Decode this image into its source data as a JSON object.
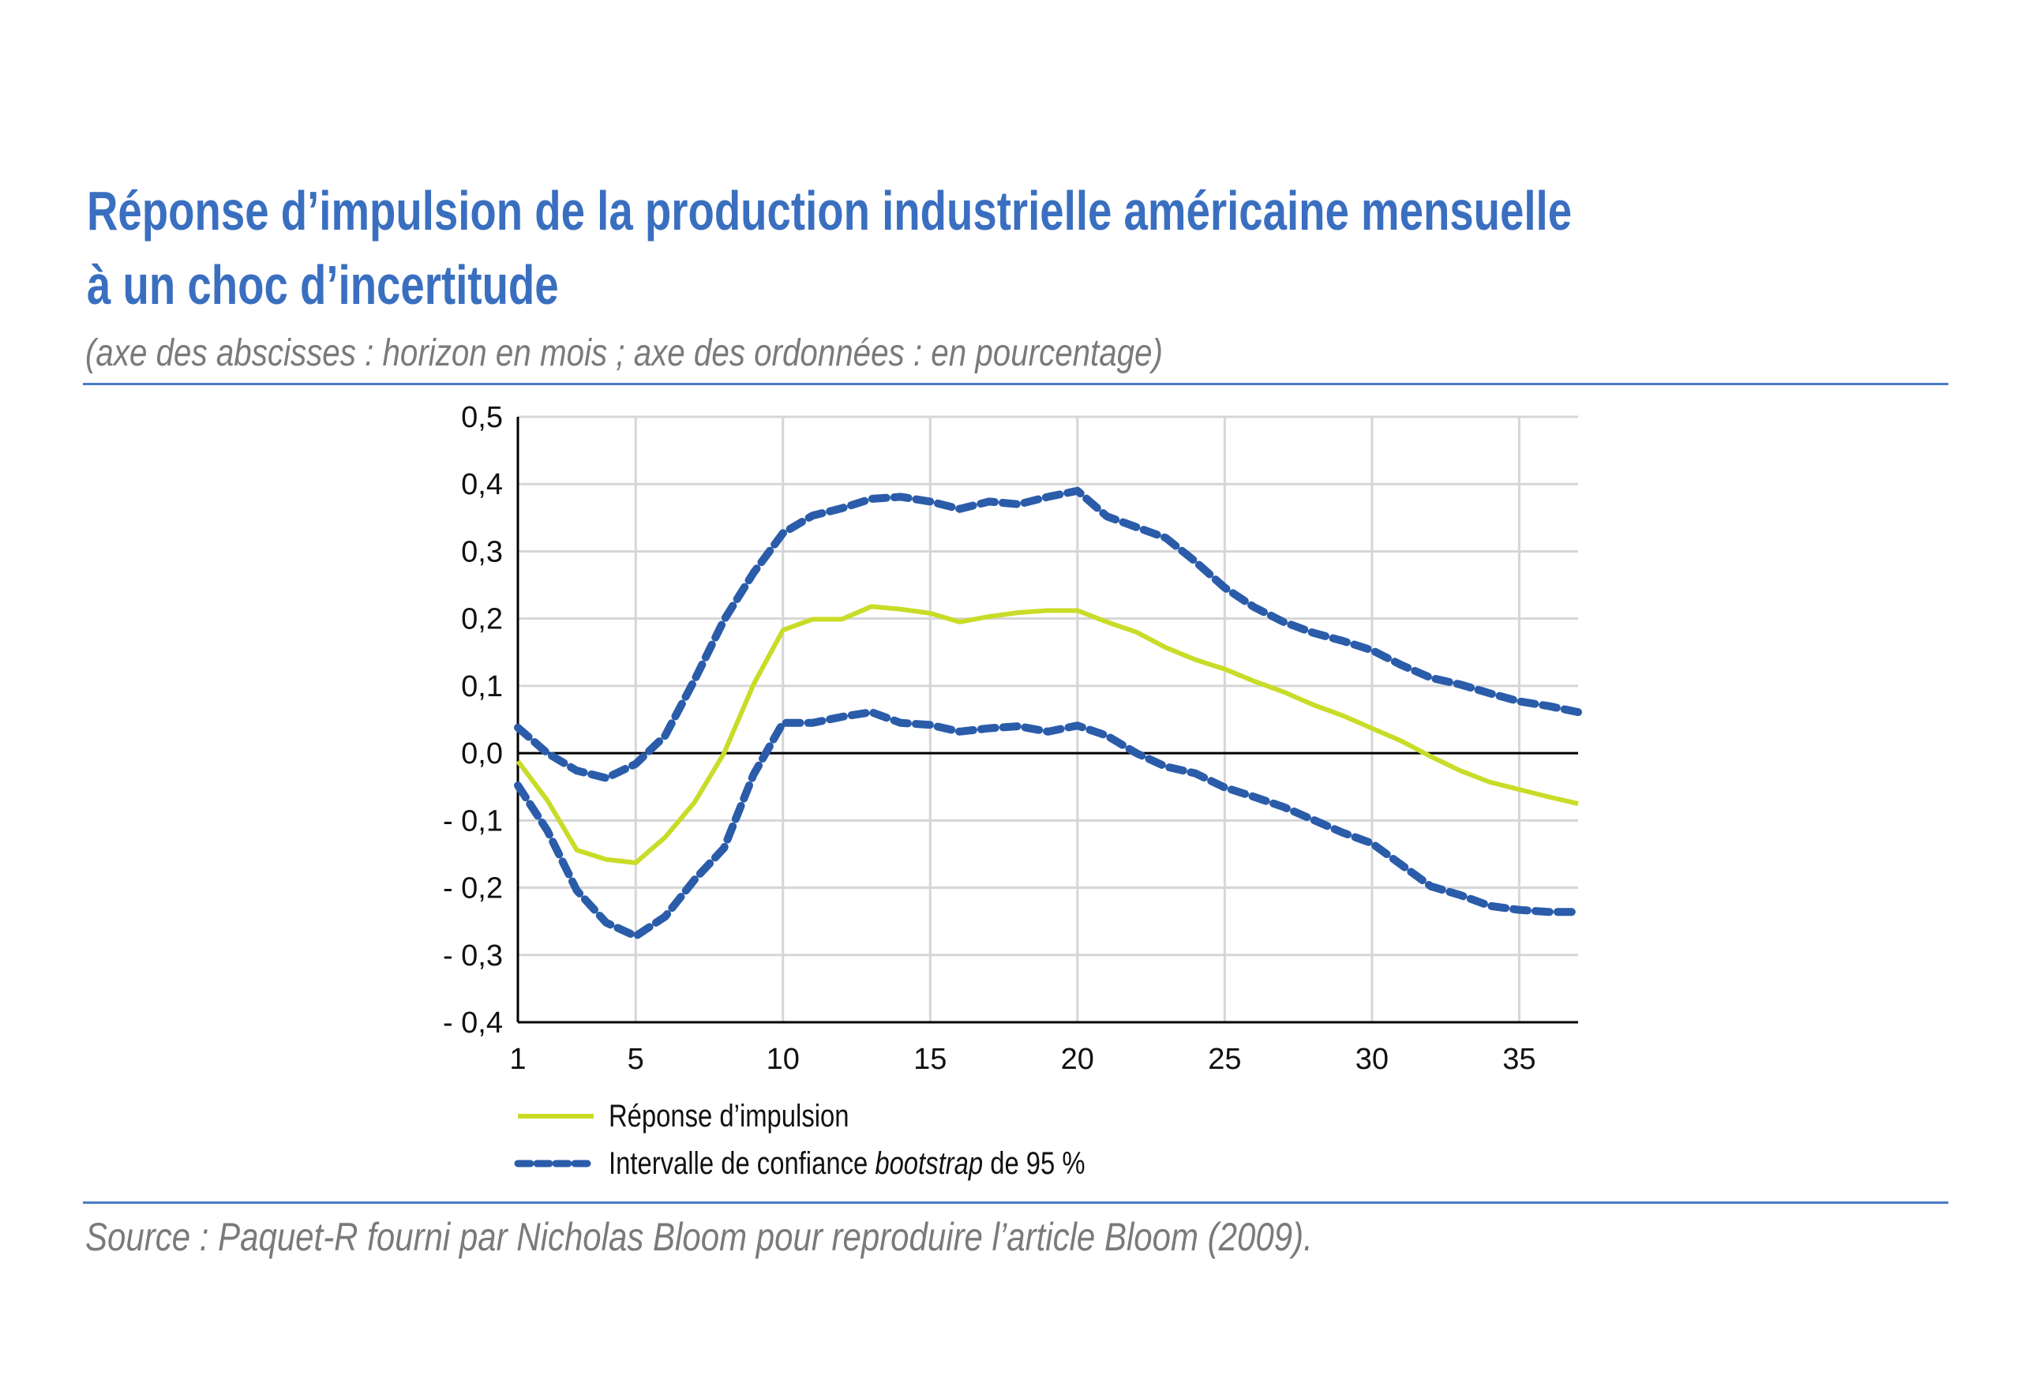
{
  "header": {
    "title_line1": "Réponse d’impulsion de la production industrielle américaine mensuelle",
    "title_line2": "à un choc d’incertitude",
    "subtitle": "(axe des abscisses : horizon en mois ; axe des ordonnées : en pourcentage)"
  },
  "footer": {
    "source": "Source : Paquet-R fourni par Nicholas Bloom pour reproduire l’article Bloom (2009)."
  },
  "colors": {
    "title": "#3a6fc0",
    "response": "#c8dc28",
    "interval": "#2a5caa",
    "grid": "#d6d6d6"
  },
  "chart_data": {
    "type": "line",
    "title": "Réponse d’impulsion de la production industrielle américaine mensuelle à un choc d’incertitude",
    "xlabel": "horizon en mois",
    "ylabel": "en pourcentage",
    "xlim": [
      1,
      37
    ],
    "ylim": [
      -0.4,
      0.5
    ],
    "grid": true,
    "legend_placement": "bottom-left",
    "x_ticks": [
      1,
      5,
      10,
      15,
      20,
      25,
      30,
      35
    ],
    "x_tick_labels": [
      "1",
      "5",
      "10",
      "15",
      "20",
      "25",
      "30",
      "35"
    ],
    "y_ticks": [
      0.5,
      0.4,
      0.3,
      0.2,
      0.1,
      0.0,
      -0.1,
      -0.2,
      -0.3,
      -0.4
    ],
    "y_tick_labels": [
      "0,5",
      "0,4",
      "0,3",
      "0,2",
      "0,1",
      "0,0",
      "- 0,1",
      "- 0,2",
      "- 0,3",
      "- 0,4"
    ],
    "x": [
      1,
      2,
      3,
      4,
      5,
      6,
      7,
      8,
      9,
      10,
      11,
      12,
      13,
      14,
      15,
      16,
      17,
      18,
      19,
      20,
      21,
      22,
      23,
      24,
      25,
      26,
      27,
      28,
      29,
      30,
      31,
      32,
      33,
      34,
      35,
      36,
      37
    ],
    "series": [
      {
        "name": "Réponse d’impulsion",
        "style": "solid",
        "values": [
          -0.012,
          -0.07,
          -0.144,
          -0.158,
          -0.163,
          -0.125,
          -0.073,
          0.0,
          0.102,
          0.183,
          0.199,
          0.199,
          0.218,
          0.214,
          0.208,
          0.195,
          0.203,
          0.209,
          0.212,
          0.212,
          0.195,
          0.18,
          0.157,
          0.139,
          0.125,
          0.107,
          0.091,
          0.072,
          0.056,
          0.037,
          0.018,
          -0.005,
          -0.026,
          -0.043,
          -0.054,
          -0.065,
          -0.075
        ]
      },
      {
        "name": "Intervalle de confiance bootstrap de 95 % (borne haute)",
        "style": "dashed",
        "values": [
          0.038,
          0.0,
          -0.026,
          -0.037,
          -0.016,
          0.026,
          0.109,
          0.198,
          0.268,
          0.327,
          0.353,
          0.364,
          0.378,
          0.381,
          0.374,
          0.363,
          0.374,
          0.37,
          0.381,
          0.39,
          0.352,
          0.336,
          0.32,
          0.285,
          0.246,
          0.217,
          0.195,
          0.179,
          0.167,
          0.153,
          0.131,
          0.112,
          0.102,
          0.089,
          0.077,
          0.07,
          0.061
        ]
      },
      {
        "name": "Intervalle de confiance bootstrap de 95 % (borne basse)",
        "style": "dashed",
        "values": [
          -0.048,
          -0.115,
          -0.204,
          -0.252,
          -0.272,
          -0.243,
          -0.188,
          -0.141,
          -0.032,
          0.045,
          0.045,
          0.054,
          0.061,
          0.045,
          0.042,
          0.032,
          0.037,
          0.04,
          0.032,
          0.041,
          0.026,
          0.0,
          -0.02,
          -0.03,
          -0.051,
          -0.065,
          -0.08,
          -0.099,
          -0.118,
          -0.134,
          -0.166,
          -0.198,
          -0.211,
          -0.227,
          -0.233,
          -0.236,
          -0.236
        ]
      }
    ],
    "legend": {
      "response": "Réponse d’impulsion",
      "interval_prefix": "Intervalle de confiance ",
      "interval_italic": "bootstrap",
      "interval_suffix": " de 95 %"
    }
  }
}
